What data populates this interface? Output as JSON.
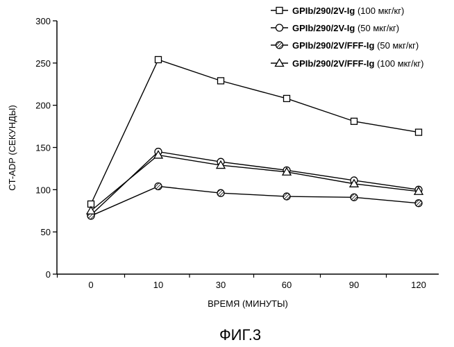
{
  "chart_data": {
    "type": "line",
    "categories": [
      "0",
      "10",
      "30",
      "60",
      "90",
      "120"
    ],
    "xlabel": "ВРЕМЯ (МИНУТЫ)",
    "ylabel": "CT-ADP (СЕКУНДЫ)",
    "ylim": [
      0,
      300
    ],
    "yticks": [
      "0",
      "50",
      "100",
      "150",
      "200",
      "250",
      "300"
    ],
    "grid": false,
    "legend_position": "top-right",
    "series": [
      {
        "name": "GPIb/290/2V-Ig",
        "dose": "(100 мкг/кг)",
        "marker": "square",
        "values": [
          83,
          254,
          229,
          208,
          181,
          168
        ]
      },
      {
        "name": "GPIb/290/2V-Ig",
        "dose": "(50 мкг/кг)",
        "marker": "circle",
        "values": [
          70,
          145,
          133,
          123,
          111,
          100
        ]
      },
      {
        "name": "GPIb/290/2V/FFF-Ig",
        "dose": "(50 мкг/кг)",
        "marker": "hatched-circle",
        "values": [
          69,
          104,
          96,
          92,
          91,
          84
        ]
      },
      {
        "name": "GPIb/290/2V/FFF-Ig",
        "dose": "(100 мкг/кг)",
        "marker": "triangle",
        "values": [
          75,
          141,
          129,
          121,
          107,
          98
        ]
      }
    ]
  },
  "caption": "ФИГ.3"
}
